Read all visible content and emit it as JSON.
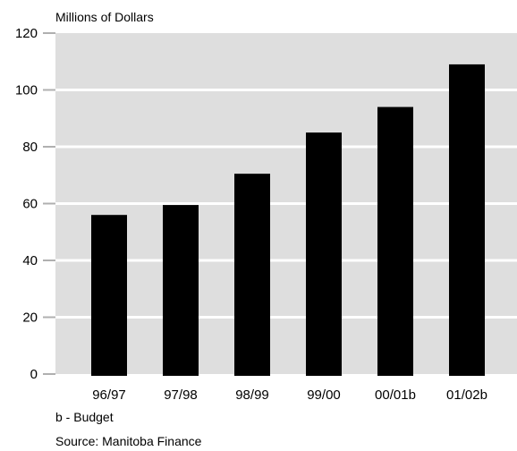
{
  "chart_data": {
    "type": "bar",
    "ylabel": "Millions of Dollars",
    "categories": [
      "96/97",
      "97/98",
      "98/99",
      "99/00",
      "00/01b",
      "01/02b"
    ],
    "values": [
      56,
      59.5,
      70.5,
      85,
      94,
      109
    ],
    "ylim": [
      0,
      120
    ],
    "yticks": [
      0,
      20,
      40,
      60,
      80,
      100,
      120
    ],
    "grid": true,
    "colors": {
      "bar": "#000000",
      "plot_background": "#dedede",
      "gridline": "#ffffff"
    }
  },
  "notes": {
    "budget": "b - Budget",
    "source": "Source:  Manitoba Finance"
  }
}
